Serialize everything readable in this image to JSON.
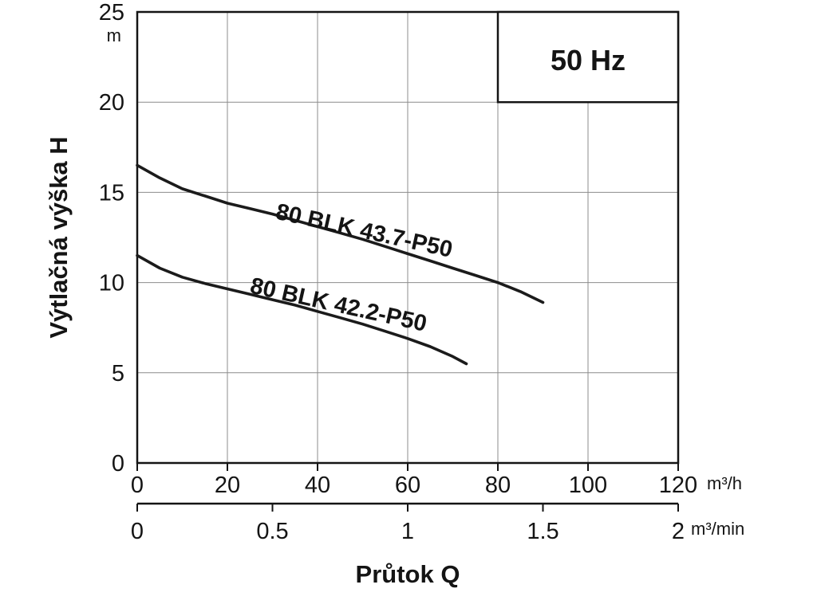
{
  "chart_data": {
    "type": "line",
    "title": "",
    "badge": "50 Hz",
    "ylabel": "Výtlačná výška H",
    "y_unit": "m",
    "xlabel": "Průtok Q",
    "ylim": [
      0,
      25
    ],
    "yticks": [
      0,
      5,
      10,
      15,
      20,
      25
    ],
    "grid": true,
    "legend_position": "none",
    "x_axis_primary": {
      "unit": "m³/h",
      "lim": [
        0,
        120
      ],
      "ticks": [
        0,
        20,
        40,
        60,
        80,
        100,
        120
      ]
    },
    "x_axis_secondary": {
      "unit": "m³/min",
      "lim": [
        0,
        2
      ],
      "ticks": [
        0,
        0.5,
        1,
        1.5,
        2
      ]
    },
    "frequency_box": {
      "x_range": [
        80,
        120
      ],
      "y_range": [
        20,
        25
      ]
    },
    "series": [
      {
        "name": "80 BLK 43.7-P50",
        "x": [
          0,
          5,
          10,
          15,
          20,
          25,
          30,
          35,
          40,
          45,
          50,
          55,
          60,
          65,
          70,
          75,
          80,
          85,
          90
        ],
        "y": [
          16.5,
          15.8,
          15.2,
          14.8,
          14.4,
          14.1,
          13.8,
          13.45,
          13.1,
          12.75,
          12.4,
          12.0,
          11.6,
          11.2,
          10.8,
          10.4,
          10.0,
          9.5,
          8.9
        ],
        "label_pos": {
          "x": 30.5,
          "y": 13.55
        },
        "label_angle": 12.5
      },
      {
        "name": "80 BLK 42.2-P50",
        "x": [
          0,
          5,
          10,
          15,
          20,
          25,
          30,
          35,
          40,
          45,
          50,
          55,
          60,
          65,
          70,
          73
        ],
        "y": [
          11.5,
          10.8,
          10.3,
          9.95,
          9.65,
          9.35,
          9.05,
          8.75,
          8.4,
          8.05,
          7.7,
          7.3,
          6.9,
          6.45,
          5.9,
          5.5
        ],
        "label_pos": {
          "x": 24.8,
          "y": 9.45
        },
        "label_angle": 12.5
      }
    ]
  }
}
